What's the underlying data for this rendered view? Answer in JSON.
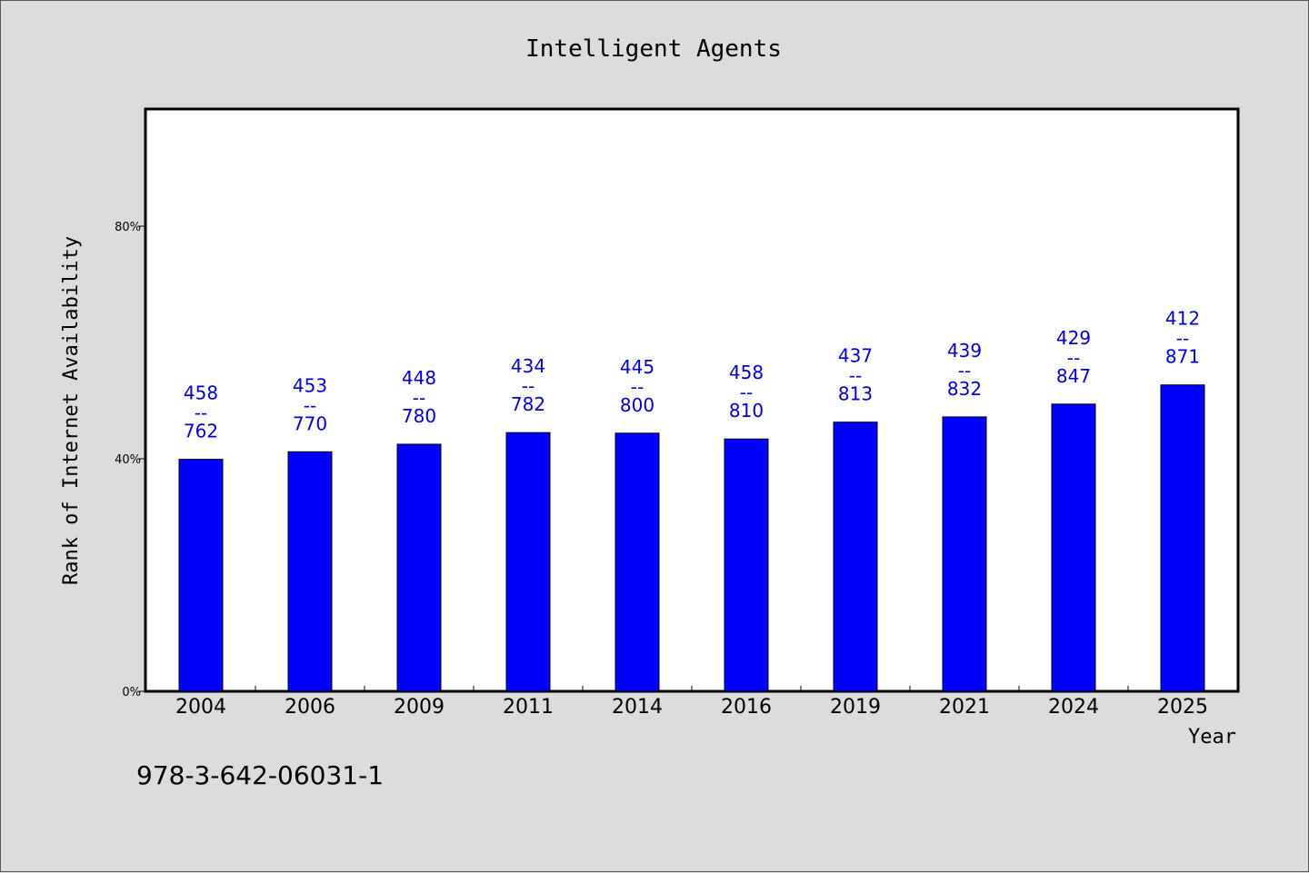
{
  "chart_data": {
    "type": "bar",
    "title": "Intelligent Agents",
    "xlabel": "Year",
    "ylabel": "Rank of Internet Availability",
    "categories": [
      "2004",
      "2006",
      "2009",
      "2011",
      "2014",
      "2016",
      "2019",
      "2021",
      "2024",
      "2025"
    ],
    "values": [
      39.9,
      41.2,
      42.5,
      44.5,
      44.4,
      43.4,
      46.3,
      47.2,
      49.4,
      52.7
    ],
    "ylim": [
      0,
      100
    ],
    "yticks": [
      0,
      40,
      80
    ],
    "ytick_labels": [
      "0%",
      "40%",
      "80%"
    ],
    "data_labels": [
      {
        "top": "458",
        "separator": "--",
        "bottom": "762"
      },
      {
        "top": "453",
        "separator": "--",
        "bottom": "770"
      },
      {
        "top": "448",
        "separator": "--",
        "bottom": "780"
      },
      {
        "top": "434",
        "separator": "--",
        "bottom": "782"
      },
      {
        "top": "445",
        "separator": "--",
        "bottom": "800"
      },
      {
        "top": "458",
        "separator": "--",
        "bottom": "810"
      },
      {
        "top": "437",
        "separator": "--",
        "bottom": "813"
      },
      {
        "top": "439",
        "separator": "--",
        "bottom": "832"
      },
      {
        "top": "429",
        "separator": "--",
        "bottom": "847"
      },
      {
        "top": "412",
        "separator": "--",
        "bottom": "871"
      }
    ],
    "bar_color": "#0000ff",
    "label_color": "#0000cc",
    "grid": false,
    "legend": "none"
  },
  "footnote": "978-3-642-06031-1"
}
